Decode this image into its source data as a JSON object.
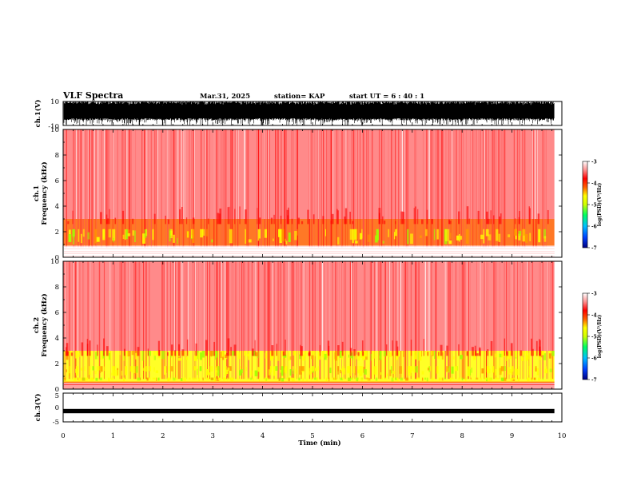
{
  "header": {
    "title": "VLF Spectra",
    "date": "Mar.31, 2025",
    "station": "station= KAP",
    "start": "start  UT  =   6 : 40 : 1"
  },
  "chart_data": [
    {
      "type": "line",
      "name": "ch1-waveform",
      "ylabel": "ch.1(V)",
      "ylim": [
        -10,
        10
      ],
      "y_ticks": [
        "10",
        "-10"
      ],
      "xlim": [
        0,
        10
      ],
      "signal": "dense broadband noise, mostly saturated between about -5 and 10 V"
    },
    {
      "type": "heatmap",
      "name": "ch1-spectrogram",
      "ylabel": "ch.1\nFrequency (kHz)",
      "ylim": [
        0,
        10
      ],
      "y_ticks": [
        "0",
        "2",
        "4",
        "6",
        "8",
        "10"
      ],
      "xlim": [
        0,
        9.85
      ],
      "colorbar": {
        "label": "log(PSD)(V²/Hz)",
        "range": [
          -7,
          -3
        ],
        "ticks": [
          "-3",
          "-4",
          "-5",
          "-6",
          "-7"
        ],
        "colors": [
          "#000080",
          "#0040ff",
          "#00c0ff",
          "#00ff60",
          "#d0ff00",
          "#ffff00",
          "#ff6000",
          "#ff0000",
          "#ff9090",
          "#ffffff"
        ]
      },
      "bands_khz": [
        {
          "from": 0.9,
          "to": 3.0,
          "log_psd": -4.3,
          "note": "red band with yellow-green patches near 1-2 kHz"
        },
        {
          "from": 3.0,
          "to": 10.0,
          "log_psd": -3.3,
          "note": "pale red background with bright vertical sferic streaks"
        },
        {
          "from": 0.0,
          "to": 0.9,
          "log_psd": -3.0,
          "note": "mostly white with thin horizontal lines"
        }
      ]
    },
    {
      "type": "heatmap",
      "name": "ch2-spectrogram",
      "ylabel": "ch.2\nFrequency (kHz)",
      "ylim": [
        0,
        10
      ],
      "y_ticks": [
        "0",
        "2",
        "4",
        "6",
        "8",
        "10"
      ],
      "xlim": [
        0,
        9.85
      ],
      "colorbar": {
        "label": "log(PSD)(V²/Hz)",
        "range": [
          -7,
          -3
        ],
        "ticks": [
          "-3",
          "-4",
          "-5",
          "-6",
          "-7"
        ]
      },
      "bands_khz": [
        {
          "from": 0.5,
          "to": 3.0,
          "log_psd": -4.6,
          "note": "strong yellow-green bands near 1.2 and 2.6 kHz"
        },
        {
          "from": 3.0,
          "to": 10.0,
          "log_psd": -3.4,
          "note": "red background with vertical sferic streaks"
        },
        {
          "from": 0.0,
          "to": 0.5,
          "log_psd": -3.5,
          "note": "red with horizontal lines"
        }
      ]
    },
    {
      "type": "line",
      "name": "ch3-waveform",
      "ylabel": "ch.3(V)",
      "ylim": [
        -5,
        5
      ],
      "y_ticks": [
        "5",
        "0",
        "-5"
      ],
      "xlim": [
        0,
        10
      ],
      "x_ticks": [
        "0",
        "1",
        "2",
        "3",
        "4",
        "5",
        "6",
        "7",
        "8",
        "9",
        "10"
      ],
      "xlabel": "Time (min)",
      "signal": "narrow dense trace around -1 V"
    }
  ]
}
